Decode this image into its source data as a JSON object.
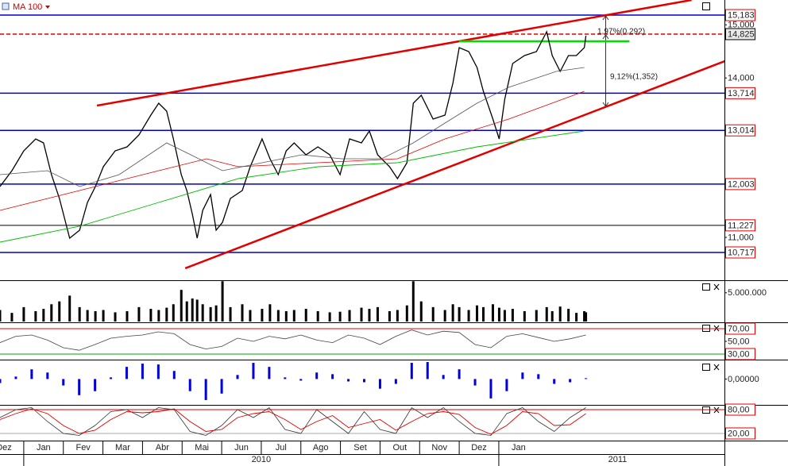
{
  "chart_data": [
    {
      "type": "line",
      "xlim": [
        -0.6,
        17.7
      ],
      "ylim": [
        10209,
        15467
      ],
      "yticks": [
        {
          "value": 15183,
          "label": "15,183",
          "line": "#0000cc",
          "box": "#e00000"
        },
        {
          "value": 15000,
          "label": "15,000"
        },
        {
          "value": 14825,
          "label": "14,825",
          "line": "#e00000",
          "dash": true,
          "box": "#000000",
          "fill": "#e8e8e8"
        },
        {
          "value": 14000,
          "label": "14,000"
        },
        {
          "value": 13714,
          "label": "13,714",
          "line": "#0000cc",
          "box": "#e00000"
        },
        {
          "value": 13014,
          "label": "13,014",
          "line": "#0000cc",
          "box": "#e00000"
        },
        {
          "value": 12003,
          "label": "12,003",
          "line": "#0000cc",
          "box": "#e00000"
        },
        {
          "value": 11227,
          "label": "11,227",
          "line": "#000000",
          "box": "#e00000"
        },
        {
          "value": 11000,
          "label": "11,000"
        },
        {
          "value": 10717,
          "label": "10,717",
          "line": "#0000cc",
          "box": "#e00000"
        }
      ],
      "series": [
        {
          "color": "#000000",
          "width": 1.3,
          "x": [
            -0.6,
            -0.3,
            0,
            0.3,
            0.5,
            0.7,
            0.9,
            1.16,
            1.41,
            1.61,
            1.81,
            2.01,
            2.31,
            2.61,
            2.91,
            3.21,
            3.41,
            3.61,
            3.78,
            3.98,
            4.12,
            4.26,
            4.38,
            4.52,
            4.72,
            4.86,
            5.02,
            5.22,
            5.52,
            5.72,
            6.02,
            6.22,
            6.43,
            6.63,
            6.83,
            7.13,
            7.43,
            7.73,
            7.99,
            8.23,
            8.53,
            8.73,
            8.94,
            9.24,
            9.44,
            9.68,
            9.84,
            10.04,
            10.34,
            10.64,
            10.84,
            11.0,
            11.24,
            11.45,
            11.61,
            11.85,
            12.01,
            12.15,
            12.35,
            12.65,
            12.95,
            13.21,
            13.35,
            13.55,
            13.76,
            13.96,
            14.16,
            14.2
          ],
          "values": [
            11957,
            12256,
            12629,
            12853,
            12778,
            12181,
            11733,
            10986,
            11135,
            11658,
            11957,
            12330,
            12629,
            12704,
            12928,
            13301,
            13525,
            13376,
            12853,
            12181,
            11882,
            11434,
            10986,
            11509,
            11807,
            11135,
            11285,
            11733,
            11882,
            12330,
            12853,
            12480,
            12181,
            12629,
            12778,
            12554,
            12704,
            12554,
            12181,
            12853,
            12778,
            13002,
            12554,
            12330,
            12106,
            12405,
            13525,
            13674,
            13226,
            13301,
            13899,
            14571,
            14496,
            14197,
            13749,
            13226,
            12853,
            13600,
            14272,
            14421,
            14496,
            14869,
            14421,
            14123,
            14421,
            14421,
            14571,
            14795
          ]
        },
        {
          "color": "#555555",
          "width": 0.8,
          "x": [
            -0.6,
            0.6,
            1.41,
            2.41,
            3.61,
            4.22,
            5.02,
            6.02,
            7.03,
            8.03,
            9.04,
            9.84,
            10.64,
            11.45,
            12.25,
            13.45,
            14.16
          ],
          "values": [
            12181,
            12256,
            11957,
            12181,
            12778,
            12554,
            12256,
            12405,
            12554,
            12480,
            12480,
            12778,
            13152,
            13525,
            13824,
            14123,
            14197
          ]
        },
        {
          "color": "#e00000",
          "width": 0.8,
          "x": [
            -0.6,
            1.41,
            3.41,
            4.62,
            5.42,
            7.43,
            9.44,
            10.64,
            12.25,
            14.16
          ],
          "values": [
            11509,
            11882,
            12256,
            12480,
            12330,
            12405,
            12480,
            12853,
            13226,
            13749
          ]
        },
        {
          "name": "MA 100",
          "color": "#00bb00",
          "width": 0.9,
          "x": [
            -0.6,
            1.41,
            3.41,
            5.42,
            7.43,
            9.44,
            11.45,
            14.16
          ],
          "values": [
            10911,
            11210,
            11658,
            12106,
            12330,
            12405,
            12704,
            13002
          ]
        }
      ],
      "lines": [
        {
          "x": [
            1.85,
            16.87
          ],
          "values": [
            13480,
            15467
          ],
          "color": "#e00000"
        },
        {
          "x": [
            4.08,
            17.71
          ],
          "values": [
            10419,
            14317
          ],
          "color": "#e00000"
        },
        {
          "x": [
            11.0,
            15.3
          ],
          "values": [
            14690,
            14690
          ],
          "color": "#00dd00"
        }
      ],
      "annotations": [
        "1,97%(0,292)",
        "9,12%(1,352)"
      ]
    },
    {
      "type": "bar",
      "xlim": [
        -0.6,
        17.7
      ],
      "ylim": [
        0,
        6900000
      ],
      "color": "#000000",
      "yticks": [
        {
          "value": 5000000,
          "label": "5.000.000"
        }
      ],
      "x": [
        -0.6,
        -0.3,
        0,
        0.3,
        0.5,
        0.7,
        0.9,
        1.16,
        1.41,
        1.61,
        1.81,
        2.01,
        2.31,
        2.61,
        2.91,
        3.21,
        3.41,
        3.61,
        3.78,
        3.98,
        4.12,
        4.26,
        4.38,
        4.52,
        4.72,
        4.86,
        5.02,
        5.22,
        5.52,
        5.72,
        6.02,
        6.22,
        6.43,
        6.63,
        6.83,
        7.13,
        7.43,
        7.73,
        7.99,
        8.23,
        8.53,
        8.73,
        8.94,
        9.24,
        9.44,
        9.68,
        9.84,
        10.04,
        10.34,
        10.64,
        10.84,
        11.0,
        11.24,
        11.45,
        11.61,
        11.85,
        12.01,
        12.15,
        12.35,
        12.65,
        12.95,
        13.21,
        13.35,
        13.55,
        13.76,
        13.96,
        14.16,
        14.2
      ],
      "values": [
        2000000,
        1500000,
        2500000,
        1800000,
        2200000,
        3000000,
        3500000,
        4500000,
        2500000,
        2000000,
        1800000,
        2000000,
        1600000,
        1800000,
        2500000,
        2200000,
        2000000,
        2400000,
        3000000,
        5500000,
        3500000,
        4000000,
        3800000,
        3000000,
        2500000,
        2800000,
        7000000,
        2500000,
        3000000,
        2000000,
        2200000,
        3000000,
        2000000,
        1800000,
        2000000,
        2200000,
        1800000,
        1600000,
        1700000,
        2000000,
        2400000,
        2200000,
        2500000,
        1800000,
        2000000,
        2800000,
        7000000,
        3500000,
        2500000,
        2000000,
        3000000,
        2500000,
        2000000,
        2800000,
        2500000,
        3000000,
        2400000,
        2000000,
        2200000,
        1800000,
        2000000,
        2500000,
        1800000,
        2600000,
        2200000,
        1500000,
        1800000,
        1600000
      ]
    },
    {
      "type": "line",
      "xlim": [
        -0.6,
        17.7
      ],
      "ylim": [
        22.5,
        77.5
      ],
      "yticks": [
        {
          "value": 70,
          "label": "70,00",
          "line": "#e00000",
          "box": "#e00000"
        },
        {
          "value": 50,
          "label": "50,00"
        },
        {
          "value": 30,
          "label": "30,00",
          "line": "#00aa00",
          "box": "#e00000"
        }
      ],
      "x": [
        -0.6,
        -0.2,
        0.2,
        0.6,
        1.0,
        1.4,
        1.8,
        2.2,
        2.6,
        3.0,
        3.4,
        3.8,
        4.2,
        4.6,
        5.0,
        5.4,
        5.8,
        6.2,
        6.6,
        7.0,
        7.4,
        7.8,
        8.2,
        8.6,
        9.0,
        9.4,
        9.8,
        10.2,
        10.6,
        11.0,
        11.4,
        11.8,
        12.2,
        12.6,
        13.0,
        13.4,
        13.8,
        14.2
      ],
      "series": [
        {
          "color": "#444444",
          "width": 0.8,
          "values": [
            48,
            58,
            60,
            52,
            40,
            36,
            45,
            55,
            58,
            60,
            65,
            62,
            45,
            38,
            42,
            55,
            50,
            58,
            54,
            60,
            52,
            48,
            60,
            55,
            45,
            58,
            68,
            60,
            66,
            64,
            45,
            40,
            58,
            62,
            56,
            50,
            54,
            60
          ]
        }
      ]
    },
    {
      "type": "bar",
      "xlim": [
        -0.6,
        17.7
      ],
      "ylim": [
        -300,
        220
      ],
      "color": "#0000dd",
      "yticks": [
        {
          "value": 0,
          "label": "0,00000"
        }
      ],
      "x": [
        -0.6,
        -0.2,
        0.2,
        0.6,
        1.0,
        1.4,
        1.8,
        2.2,
        2.6,
        3.0,
        3.4,
        3.8,
        4.2,
        4.6,
        5.0,
        5.4,
        5.8,
        6.2,
        6.6,
        7.0,
        7.4,
        7.8,
        8.2,
        8.6,
        9.0,
        9.4,
        9.8,
        10.2,
        10.6,
        11.0,
        11.4,
        11.8,
        12.2,
        12.6,
        13.0,
        13.4,
        13.8,
        14.2
      ],
      "values": [
        -50,
        30,
        120,
        80,
        -80,
        -200,
        -150,
        20,
        150,
        190,
        180,
        100,
        -150,
        -260,
        -180,
        50,
        200,
        150,
        20,
        -20,
        80,
        60,
        -30,
        -40,
        -120,
        -60,
        200,
        210,
        50,
        120,
        -80,
        -240,
        -150,
        80,
        60,
        -60,
        -40,
        10
      ]
    },
    {
      "type": "line",
      "xlim": [
        -0.6,
        17.7
      ],
      "ylim": [
        6,
        88
      ],
      "yticks": [
        {
          "value": 80,
          "label": "80,00",
          "line": "#e00000",
          "box": "#e00000"
        },
        {
          "value": 20,
          "label": "20,00",
          "line": "#aaaaaa",
          "box": "#e00000"
        }
      ],
      "x": [
        -0.6,
        -0.2,
        0.2,
        0.6,
        1.0,
        1.4,
        1.8,
        2.2,
        2.6,
        3.0,
        3.4,
        3.8,
        4.2,
        4.6,
        5.0,
        5.4,
        5.8,
        6.2,
        6.6,
        7.0,
        7.4,
        7.8,
        8.2,
        8.6,
        9.0,
        9.4,
        9.8,
        10.2,
        10.6,
        11.0,
        11.4,
        11.8,
        12.2,
        12.6,
        13.0,
        13.4,
        13.8,
        14.2
      ],
      "series": [
        {
          "color": "#333333",
          "width": 0.8,
          "values": [
            60,
            80,
            85,
            50,
            20,
            15,
            40,
            75,
            80,
            60,
            85,
            80,
            25,
            15,
            40,
            80,
            60,
            85,
            30,
            20,
            80,
            50,
            20,
            75,
            30,
            20,
            85,
            60,
            85,
            50,
            20,
            15,
            70,
            85,
            50,
            25,
            60,
            85
          ]
        },
        {
          "color": "#e00000",
          "width": 0.9,
          "values": [
            55,
            70,
            82,
            70,
            40,
            20,
            28,
            55,
            75,
            72,
            75,
            82,
            50,
            25,
            30,
            60,
            70,
            75,
            55,
            30,
            50,
            65,
            35,
            45,
            55,
            28,
            50,
            70,
            75,
            68,
            35,
            18,
            40,
            75,
            70,
            40,
            42,
            70
          ]
        }
      ],
      "categories": [
        "Dez",
        "Jan",
        "Fev",
        "Mar",
        "Abr",
        "Mai",
        "Jun",
        "Jul",
        "Ago",
        "Set",
        "Out",
        "Nov",
        "Dez",
        "Jan"
      ],
      "groups": [
        "2010",
        "2011"
      ]
    }
  ]
}
